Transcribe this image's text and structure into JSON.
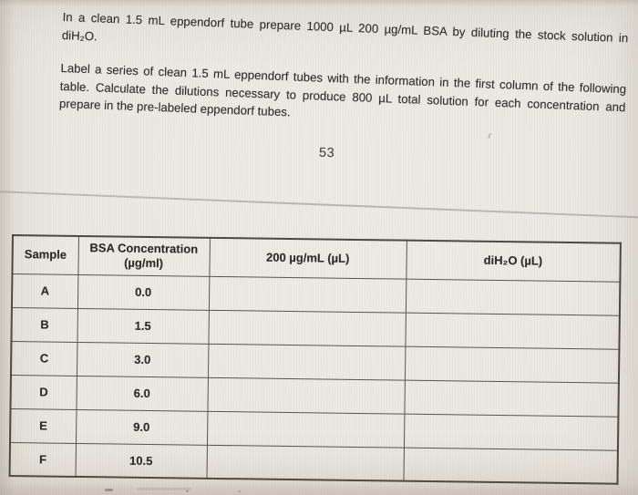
{
  "document": {
    "paragraph1_lines": [
      "In a clean 1.5 mL eppendorf tube prepare 1000 µL 200 µg/mL BSA by diluting the stock solution in",
      "diH₂O."
    ],
    "paragraph2_lines": [
      "Label a series of clean 1.5 mL eppendorf tubes with the information in the first column of the following",
      "table.  Calculate the dilutions necessary to produce 800 µL total solution for each concentration and",
      "prepare in the pre-labeled eppendorf tubes."
    ],
    "page_number": "53"
  },
  "table": {
    "headers": {
      "sample": "Sample",
      "bsa_line1": "BSA Concentration",
      "bsa_line2": "(µg/ml)",
      "stock": "200 µg/mL (µL)",
      "water": "diH₂O (µL)"
    },
    "rows": [
      {
        "sample": "A",
        "bsa_concentration": "0.0",
        "stock_volume": "",
        "water_volume": ""
      },
      {
        "sample": "B",
        "bsa_concentration": "1.5",
        "stock_volume": "",
        "water_volume": ""
      },
      {
        "sample": "C",
        "bsa_concentration": "3.0",
        "stock_volume": "",
        "water_volume": ""
      },
      {
        "sample": "D",
        "bsa_concentration": "6.0",
        "stock_volume": "",
        "water_volume": ""
      },
      {
        "sample": "E",
        "bsa_concentration": "9.0",
        "stock_volume": "",
        "water_volume": ""
      },
      {
        "sample": "F",
        "bsa_concentration": "10.5",
        "stock_volume": "",
        "water_volume": ""
      }
    ]
  },
  "colors": {
    "paper": "#eae7e1",
    "table_border": "#57534c",
    "text": "#2f2d29",
    "divider": "#b2afa9"
  }
}
